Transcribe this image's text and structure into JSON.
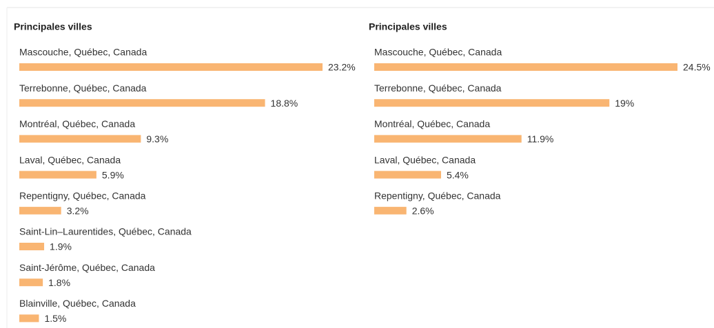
{
  "chart_data": [
    {
      "type": "bar",
      "title": "Principales villes",
      "color": "#f9b572",
      "categories": [
        "Mascouche, Québec, Canada",
        "Terrebonne, Québec, Canada",
        "Montréal, Québec, Canada",
        "Laval, Québec, Canada",
        "Repentigny, Québec, Canada",
        "Saint-Lin–Laurentides, Québec, Canada",
        "Saint-Jérôme, Québec, Canada",
        "Blainville, Québec, Canada"
      ],
      "values": [
        23.2,
        18.8,
        9.3,
        5.9,
        3.2,
        1.9,
        1.8,
        1.5
      ],
      "value_labels": [
        "23.2%",
        "18.8%",
        "9.3%",
        "5.9%",
        "3.2%",
        "1.9%",
        "1.8%",
        "1.5%"
      ]
    },
    {
      "type": "bar",
      "title": "Principales villes",
      "color": "#f9b572",
      "categories": [
        "Mascouche, Québec, Canada",
        "Terrebonne, Québec, Canada",
        "Montréal, Québec, Canada",
        "Laval, Québec, Canada",
        "Repentigny, Québec, Canada"
      ],
      "values": [
        24.5,
        19,
        11.9,
        5.4,
        2.6
      ],
      "value_labels": [
        "24.5%",
        "19%",
        "11.9%",
        "5.4%",
        "2.6%"
      ]
    }
  ]
}
